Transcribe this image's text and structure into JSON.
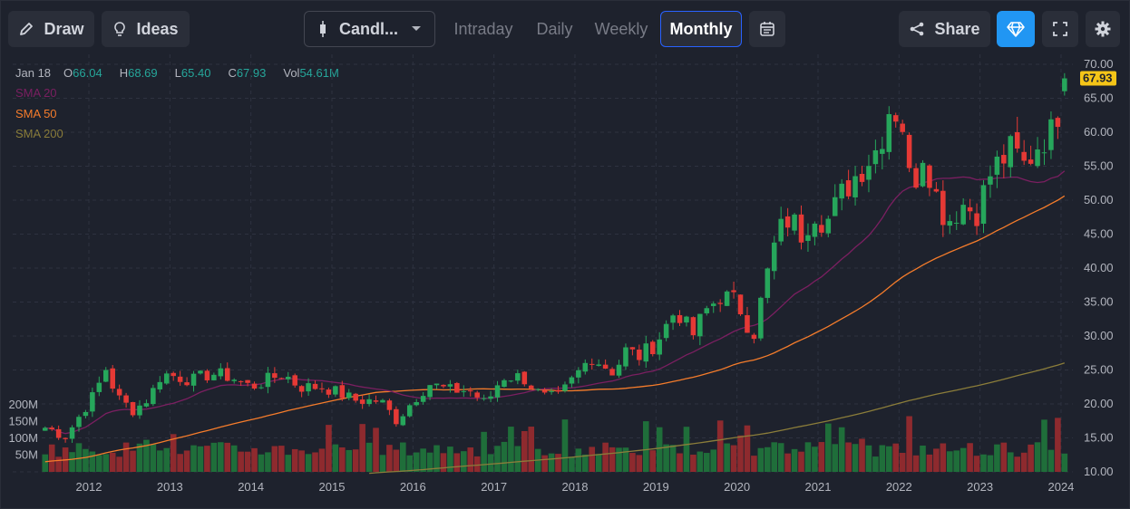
{
  "toolbar": {
    "draw_label": "Draw",
    "ideas_label": "Ideas",
    "chart_type_label": "Candl...",
    "tabs": [
      {
        "label": "Intraday"
      },
      {
        "label": "Daily"
      },
      {
        "label": "Weekly"
      },
      {
        "label": "Monthly",
        "active": true
      }
    ],
    "share_label": "Share",
    "icons": [
      "pencil-icon",
      "lightbulb-icon",
      "candlestick-icon",
      "chevron-down-icon",
      "calendar-icon",
      "share-icon",
      "diamond-icon",
      "fullscreen-icon",
      "gear-icon"
    ]
  },
  "ohlc_info": {
    "date": "Jan 18",
    "open_label": "O",
    "open": "66.04",
    "high_label": "H",
    "high": "68.69",
    "low_label": "L",
    "low": "65.40",
    "close_label": "C",
    "close": "67.93",
    "vol_label": "Vol",
    "vol": "54.61M"
  },
  "legend": [
    {
      "name": "SMA 20",
      "color": "#7b1f61"
    },
    {
      "name": "SMA 50",
      "color": "#f57c2b"
    },
    {
      "name": "SMA 200",
      "color": "#8b7d3a"
    }
  ],
  "colors": {
    "up": "#26a65b",
    "down": "#e53935",
    "vol_up": "#1f6e3a",
    "vol_down": "#8e2a2e",
    "last_price_bg": "#f5c518"
  },
  "chart_data": {
    "type": "candlestick",
    "interval": "Monthly",
    "price_axis": {
      "ylim": [
        10,
        70
      ],
      "ticks": [
        "10.00",
        "15.00",
        "20.00",
        "25.00",
        "30.00",
        "35.00",
        "40.00",
        "45.00",
        "50.00",
        "55.00",
        "60.00",
        "65.00",
        "70.00"
      ]
    },
    "volume_axis": {
      "ticks": [
        "50M",
        "100M",
        "150M",
        "200M"
      ],
      "max": 250
    },
    "x_ticks": [
      "2012",
      "2013",
      "2014",
      "2015",
      "2016",
      "2017",
      "2018",
      "2019",
      "2020",
      "2021",
      "2022",
      "2023",
      "2024"
    ],
    "last_price": "67.93",
    "anchors": [
      [
        2011.5,
        16.5
      ],
      [
        2011.7,
        15.0
      ],
      [
        2011.9,
        18.5
      ],
      [
        2012.1,
        22.0
      ],
      [
        2012.2,
        25.5
      ],
      [
        2012.35,
        21.0
      ],
      [
        2012.55,
        19.0
      ],
      [
        2012.75,
        21.0
      ],
      [
        2012.9,
        24.5
      ],
      [
        2013.1,
        24.0
      ],
      [
        2013.3,
        23.5
      ],
      [
        2013.5,
        24.5
      ],
      [
        2013.75,
        24.0
      ],
      [
        2014.0,
        22.5
      ],
      [
        2014.2,
        23.5
      ],
      [
        2014.4,
        24.5
      ],
      [
        2014.6,
        22.5
      ],
      [
        2014.9,
        22.5
      ],
      [
        2015.1,
        21.5
      ],
      [
        2015.3,
        20.5
      ],
      [
        2015.6,
        20.5
      ],
      [
        2015.8,
        17.5
      ],
      [
        2016.0,
        20.5
      ],
      [
        2016.2,
        23.0
      ],
      [
        2016.45,
        22.0
      ],
      [
        2016.7,
        22.0
      ],
      [
        2016.9,
        20.0
      ],
      [
        2017.1,
        24.0
      ],
      [
        2017.35,
        24.0
      ],
      [
        2017.6,
        21.0
      ],
      [
        2017.8,
        21.0
      ],
      [
        2018.0,
        24.0
      ],
      [
        2018.2,
        27.0
      ],
      [
        2018.5,
        24.5
      ],
      [
        2018.6,
        28.0
      ],
      [
        2018.8,
        27.0
      ],
      [
        2019.0,
        29.0
      ],
      [
        2019.25,
        34.0
      ],
      [
        2019.45,
        30.0
      ],
      [
        2019.6,
        33.5
      ],
      [
        2019.8,
        36.0
      ],
      [
        2020.0,
        35.0
      ],
      [
        2020.2,
        30.0
      ],
      [
        2020.35,
        38.0
      ],
      [
        2020.5,
        45.0
      ],
      [
        2020.65,
        47.5
      ],
      [
        2020.8,
        45.0
      ],
      [
        2020.95,
        48.5
      ],
      [
        2021.1,
        46.5
      ],
      [
        2021.3,
        51.0
      ],
      [
        2021.55,
        55.0
      ],
      [
        2021.75,
        58.0
      ],
      [
        2021.9,
        64.5
      ],
      [
        2022.05,
        61.0
      ],
      [
        2022.15,
        51.0
      ],
      [
        2022.3,
        57.5
      ],
      [
        2022.5,
        49.0
      ],
      [
        2022.6,
        47.0
      ],
      [
        2022.8,
        49.5
      ],
      [
        2022.95,
        48.0
      ],
      [
        2023.15,
        54.5
      ],
      [
        2023.4,
        57.5
      ],
      [
        2023.55,
        55.0
      ],
      [
        2023.75,
        59.0
      ],
      [
        2023.9,
        60.0
      ],
      [
        2024.05,
        67.9
      ]
    ]
  }
}
